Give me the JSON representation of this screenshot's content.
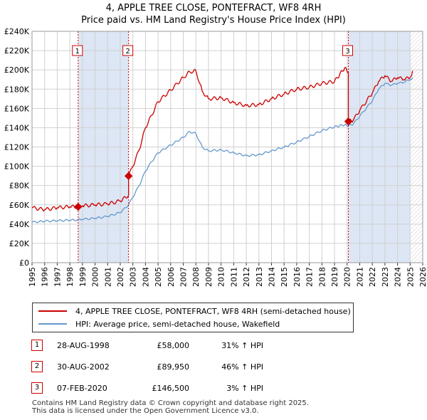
{
  "chart_data": {
    "type": "line",
    "title": "4, APPLE TREE CLOSE, PONTEFRACT, WF8 4RH",
    "subtitle": "Price paid vs. HM Land Registry's House Price Index (HPI)",
    "xlabel": "",
    "ylabel": "",
    "xlim": [
      1995,
      2026
    ],
    "ylim": [
      0,
      240000
    ],
    "x_ticks": [
      "1995",
      "1996",
      "1997",
      "1998",
      "1999",
      "2000",
      "2001",
      "2002",
      "2003",
      "2004",
      "2005",
      "2006",
      "2007",
      "2008",
      "2009",
      "2010",
      "2011",
      "2012",
      "2013",
      "2014",
      "2015",
      "2016",
      "2017",
      "2018",
      "2019",
      "2020",
      "2021",
      "2022",
      "2023",
      "2024",
      "2025",
      "2026"
    ],
    "y_ticks": [
      "£0",
      "£20K",
      "£40K",
      "£60K",
      "£80K",
      "£100K",
      "£120K",
      "£140K",
      "£160K",
      "£180K",
      "£200K",
      "£220K",
      "£240K"
    ],
    "colors": {
      "property": "#cc0000",
      "hpi": "#6699cc",
      "shade": "#dde6f4",
      "hatch": "#cccccc"
    },
    "series": [
      {
        "name": "4, APPLE TREE CLOSE, PONTEFRACT, WF8 4RH (semi-detached house)",
        "x": [
          1995.0,
          1996.0,
          1997.0,
          1998.0,
          1998.66,
          1999.0,
          2000.0,
          2001.0,
          2002.0,
          2002.66,
          2002.66,
          2003.0,
          2003.5,
          2004.0,
          2004.5,
          2005.0,
          2006.0,
          2007.0,
          2007.5,
          2008.0,
          2008.5,
          2009.0,
          2010.0,
          2011.0,
          2012.0,
          2013.0,
          2014.0,
          2015.0,
          2016.0,
          2017.0,
          2018.0,
          2019.0,
          2019.8,
          2020.1,
          2020.1,
          2020.5,
          2021.0,
          2022.0,
          2022.5,
          2023.0,
          2023.5,
          2024.0,
          2024.5,
          2025.0,
          2025.2
        ],
        "y": [
          57000,
          55000,
          57000,
          58000,
          58000,
          59000,
          60000,
          61000,
          64000,
          70000,
          89950,
          100000,
          117000,
          140000,
          153000,
          167000,
          179000,
          192000,
          198000,
          199000,
          178000,
          170000,
          171000,
          166000,
          163000,
          164000,
          170000,
          175000,
          180000,
          182000,
          186000,
          188000,
          202000,
          198000,
          146500,
          148000,
          158000,
          176000,
          188000,
          194000,
          188000,
          192000,
          190000,
          192000,
          199000
        ]
      },
      {
        "name": "HPI: Average price, semi-detached house, Wakefield",
        "x": [
          1995.0,
          1996.0,
          1997.0,
          1998.0,
          1998.66,
          1999.0,
          2000.0,
          2001.0,
          2002.0,
          2002.66,
          2003.0,
          2003.5,
          2004.0,
          2004.5,
          2005.0,
          2006.0,
          2007.0,
          2007.5,
          2008.0,
          2008.5,
          2009.0,
          2010.0,
          2011.0,
          2012.0,
          2013.0,
          2014.0,
          2015.0,
          2016.0,
          2017.0,
          2018.0,
          2019.0,
          2019.8,
          2020.1,
          2020.5,
          2021.0,
          2022.0,
          2022.5,
          2023.0,
          2023.5,
          2024.0,
          2024.5,
          2025.0,
          2025.2
        ],
        "y": [
          42000,
          43000,
          43500,
          44000,
          44500,
          45000,
          46000,
          48000,
          52000,
          60000,
          68000,
          80000,
          95000,
          105000,
          114000,
          122000,
          130000,
          136000,
          134000,
          120000,
          116000,
          117000,
          114000,
          111000,
          112000,
          116000,
          120000,
          125000,
          131000,
          137000,
          141000,
          143000,
          142000,
          144000,
          152000,
          168000,
          180000,
          186000,
          184000,
          186000,
          187000,
          190000,
          192000
        ]
      }
    ],
    "sales": [
      {
        "label": "1",
        "x": 1998.66,
        "y": 58000,
        "date": "28-AUG-1998",
        "price": "£58,000",
        "hpi": "31% ↑ HPI"
      },
      {
        "label": "2",
        "x": 2002.66,
        "y": 89950,
        "date": "30-AUG-2002",
        "price": "£89,950",
        "hpi": "46% ↑ HPI"
      },
      {
        "label": "3",
        "x": 2020.1,
        "y": 146500,
        "date": "07-FEB-2020",
        "price": "£146,500",
        "hpi": "3% ↑ HPI"
      }
    ]
  },
  "footer": {
    "line1": "Contains HM Land Registry data © Crown copyright and database right 2025.",
    "line2": "This data is licensed under the Open Government Licence v3.0."
  }
}
